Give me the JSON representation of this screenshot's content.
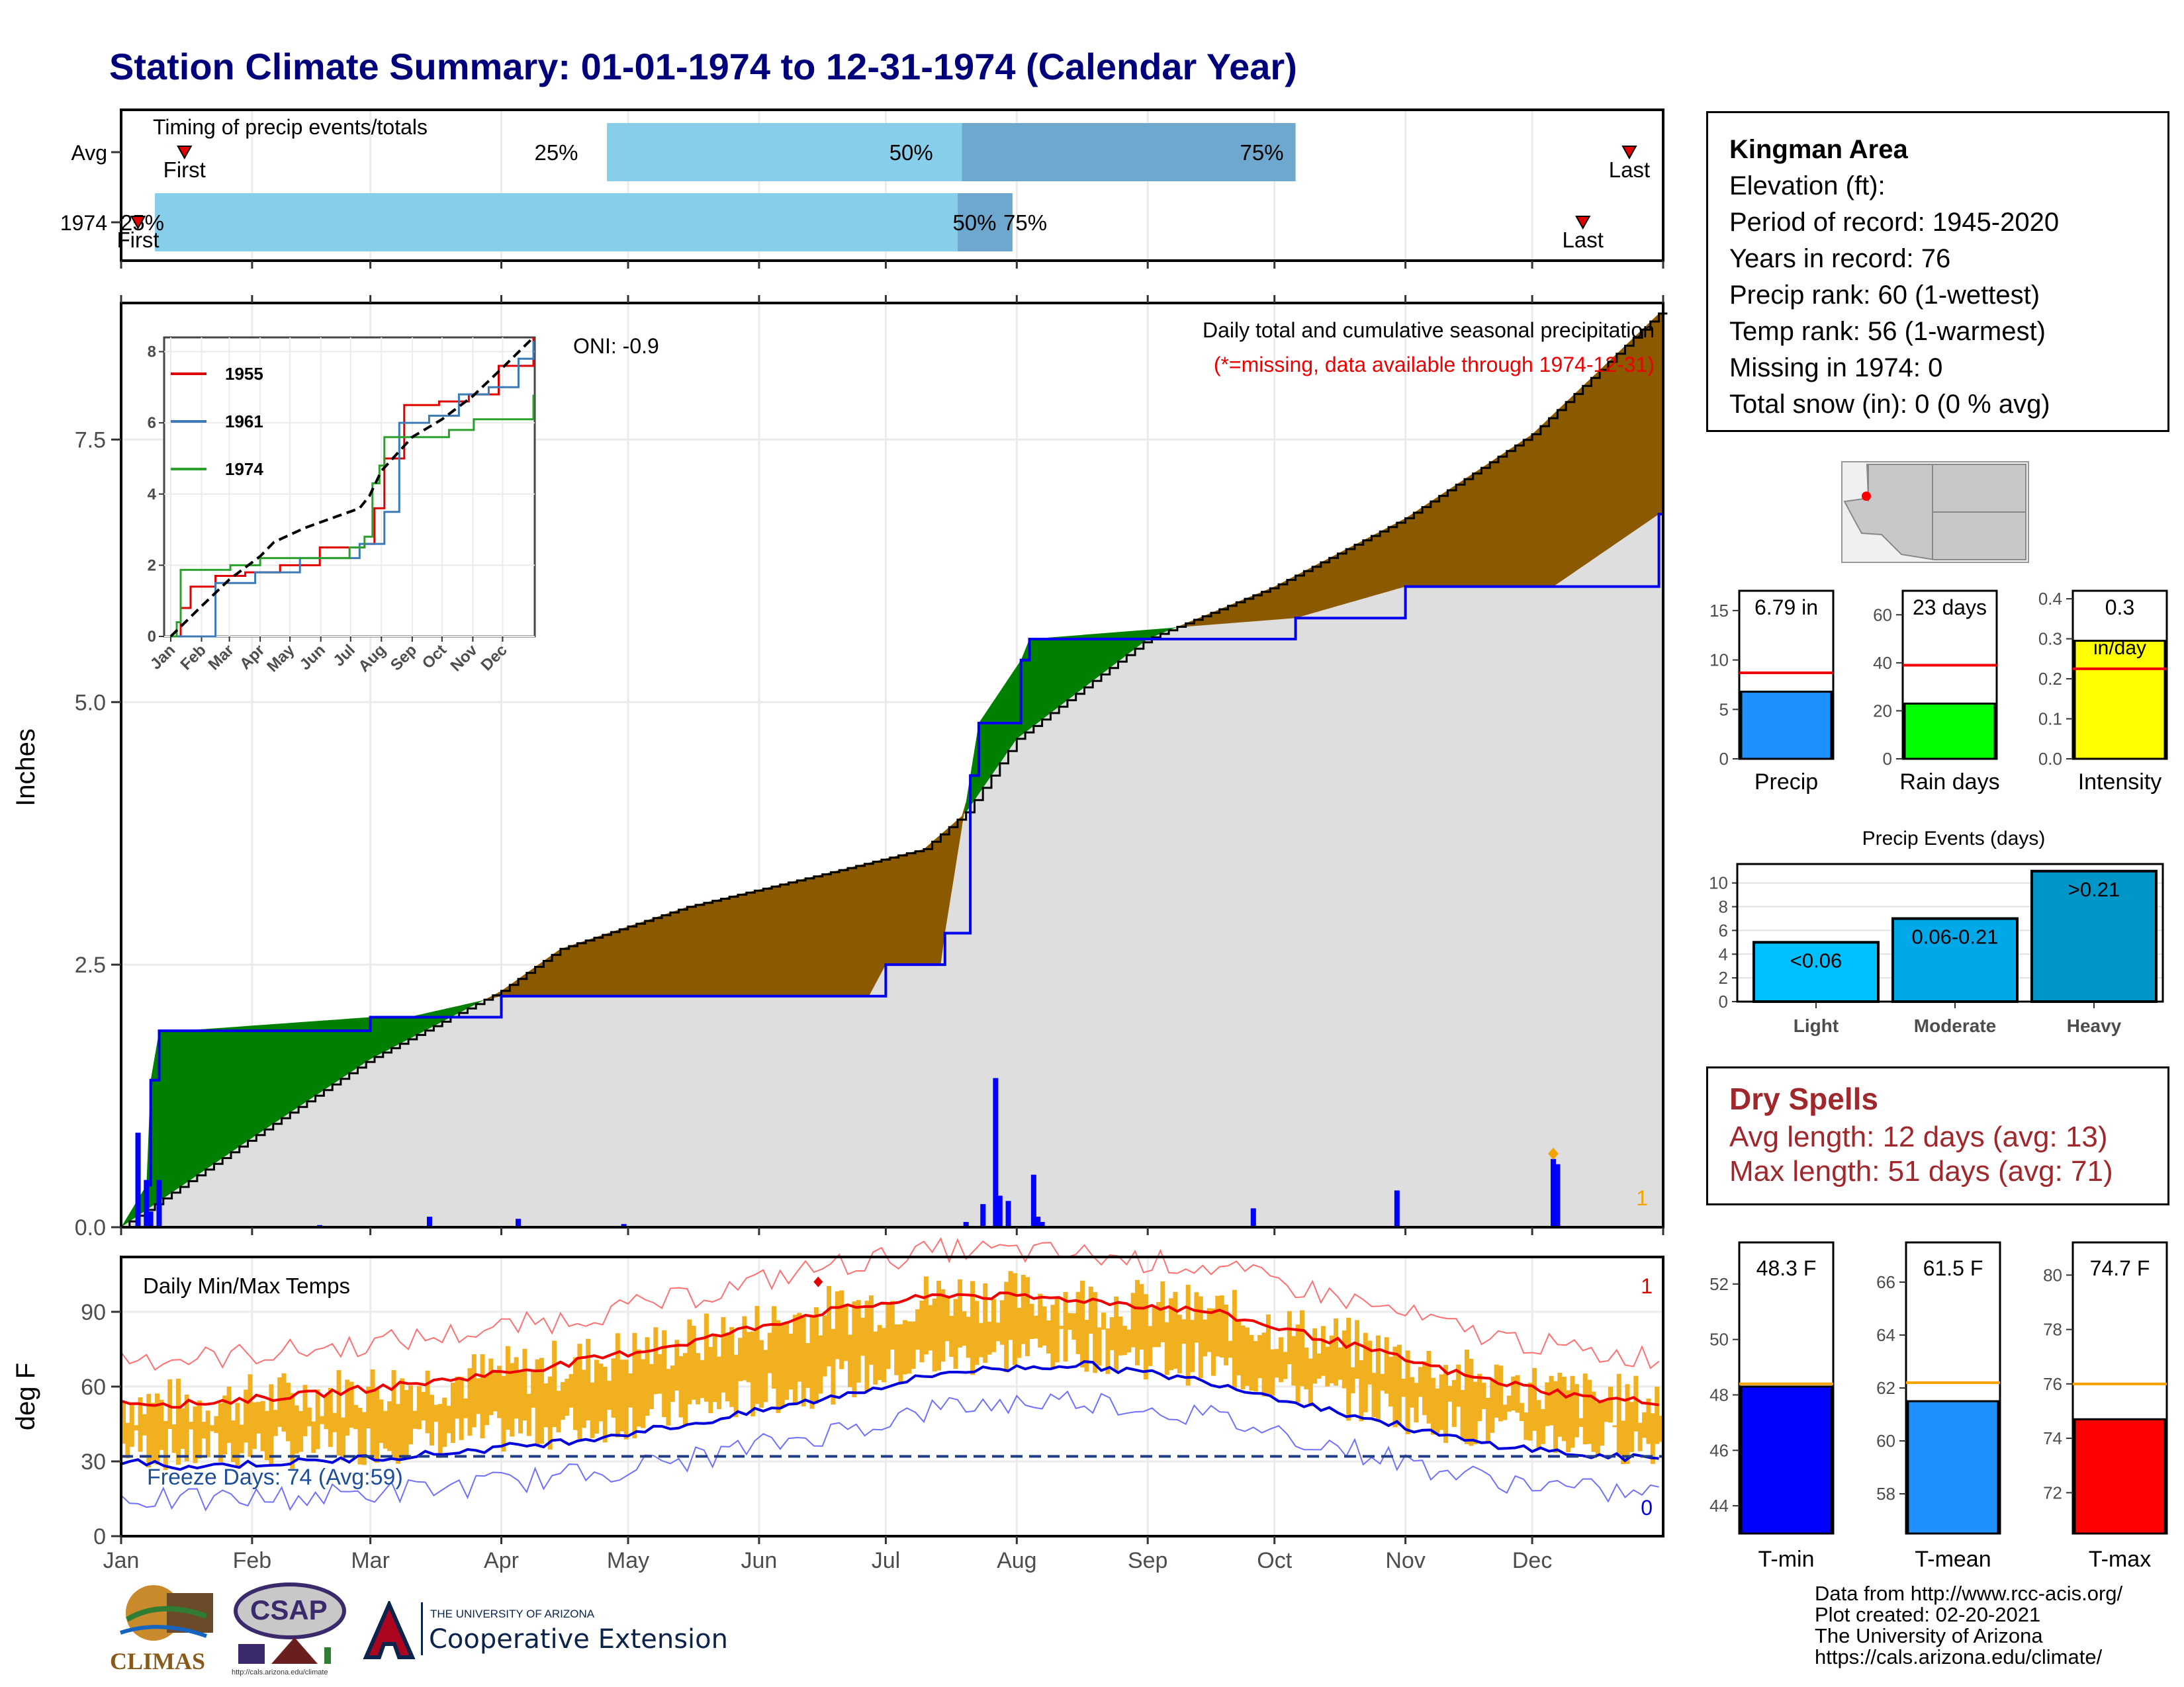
{
  "title": "Station Climate Summary: 01-01-1974 to 12-31-1974 (Calendar Year)",
  "timing": {
    "label": "Timing of precip events/totals",
    "rows": [
      "Avg",
      "1974"
    ],
    "avg": {
      "q25": "25%",
      "q50": "50%",
      "q75": "75%",
      "first": "First",
      "last": "Last"
    },
    "y1974": {
      "q25": "25%",
      "q50": "50%",
      "q75": "75%",
      "first": "First",
      "last": "Last"
    }
  },
  "precip_panel": {
    "ylabel": "Inches",
    "oni": "ONI: -0.9",
    "caption": "Daily total and cumulative seasonal precipitation",
    "caption_missing": "(*=missing, data available through 1974-12-31)",
    "count_label": "1",
    "yticks": [
      "0.0",
      "2.5",
      "5.0",
      "7.5"
    ]
  },
  "inset": {
    "yticks": [
      "0",
      "2",
      "4",
      "6",
      "8"
    ],
    "months": [
      "Jan",
      "Feb",
      "Mar",
      "Apr",
      "May",
      "Jun",
      "Jul",
      "Aug",
      "Sep",
      "Oct",
      "Nov",
      "Dec"
    ],
    "legend": [
      "1955",
      "1961",
      "1974"
    ]
  },
  "temp_panel": {
    "ylabel": "deg F",
    "label": "Daily Min/Max Temps",
    "freeze": "Freeze Days: 74 (Avg:59)",
    "count_top": "1",
    "count_bottom": "0",
    "yticks": [
      "0",
      "30",
      "60",
      "90"
    ],
    "months": [
      "Jan",
      "Feb",
      "Mar",
      "Apr",
      "May",
      "Jun",
      "Jul",
      "Aug",
      "Sep",
      "Oct",
      "Nov",
      "Dec"
    ]
  },
  "info": {
    "station": "Kingman Area",
    "lines": [
      "Elevation (ft):",
      "Period of record: 1945-2020",
      "Years in record: 76",
      "Precip rank: 60 (1-wettest)",
      "Temp rank: 56 (1-warmest)",
      "Missing in 1974: 0",
      "Total snow (in): 0 (0 % avg)"
    ]
  },
  "mini_bars": {
    "precip": {
      "label": "Precip",
      "value_text": "6.79 in",
      "value": 6.79,
      "avg": 8.7,
      "ymax": 17,
      "yticks": [
        "0",
        "5",
        "10",
        "15"
      ],
      "color": "#1e90ff"
    },
    "rain_days": {
      "label": "Rain days",
      "value_text": "23 days",
      "value": 23,
      "avg": 39,
      "ymax": 70,
      "yticks": [
        "0",
        "20",
        "40",
        "60"
      ],
      "color": "#00ff00"
    },
    "intensity": {
      "label": "Intensity",
      "value_text": "0.3",
      "value_text2": "in/day",
      "value": 0.295,
      "avg": 0.225,
      "ymax": 0.42,
      "yticks": [
        "0.0",
        "0.1",
        "0.2",
        "0.3",
        "0.4"
      ],
      "color": "#ffff00"
    }
  },
  "events": {
    "title": "Precip Events (days)",
    "yticks": [
      "0",
      "2",
      "4",
      "6",
      "8",
      "10"
    ],
    "bars": [
      {
        "cat": "Light",
        "label": "<0.06",
        "value": 5,
        "color": "#00bfff"
      },
      {
        "cat": "Moderate",
        "label": "0.06-0.21",
        "value": 7,
        "color": "#00a8e8"
      },
      {
        "cat": "Heavy",
        "label": ">0.21",
        "value": 11,
        "color": "#0096c8"
      }
    ]
  },
  "dry_spells": {
    "title": "Dry Spells",
    "avg_line": "Avg length: 12 days (avg: 13)",
    "max_line": "Max length: 51 days (avg: 71)"
  },
  "temp_bars": {
    "tmin": {
      "label": "T-min",
      "value_text": "48.3 F",
      "value": 48.3,
      "avg": 48.4,
      "ymin": 43,
      "ymax": 53.5,
      "yticks": [
        "44",
        "46",
        "48",
        "50",
        "52"
      ],
      "color": "#0000ff"
    },
    "tmean": {
      "label": "T-mean",
      "value_text": "61.5 F",
      "value": 61.5,
      "avg": 62.2,
      "ymin": 56.5,
      "ymax": 67.5,
      "yticks": [
        "58",
        "60",
        "62",
        "64",
        "66"
      ],
      "color": "#1e90ff"
    },
    "tmax": {
      "label": "T-max",
      "value_text": "74.7 F",
      "value": 74.7,
      "avg": 76.0,
      "ymin": 70.5,
      "ymax": 81.2,
      "yticks": [
        "72",
        "74",
        "76",
        "78",
        "80"
      ],
      "color": "#ff0000"
    }
  },
  "footer": {
    "lines": [
      "Data from http://www.rcc-acis.org/",
      "Plot created: 02-20-2021",
      "The University of Arizona",
      "https://cals.arizona.edu/climate/"
    ],
    "logos": {
      "climas": "CLIMAS",
      "csap": "CSAP",
      "csap_url": "http://cals.arizona.edu/climate",
      "ua_small": "THE UNIVERSITY OF ARIZONA",
      "ua_big": "Cooperative Extension"
    }
  },
  "chart_data": [
    {
      "type": "area",
      "title": "Daily total and cumulative seasonal precipitation",
      "ylabel": "Inches",
      "ylim": [
        0,
        8.8
      ],
      "series": [
        {
          "name": "1974",
          "x": [
            "01-01",
            "01-07",
            "01-08",
            "01-10",
            "01-15",
            "03-01",
            "03-10",
            "04-01",
            "06-27",
            "07-01",
            "07-14",
            "07-15",
            "07-21",
            "07-23",
            "08-02",
            "08-04",
            "10-06",
            "11-01",
            "12-06",
            "12-31"
          ],
          "values": [
            0,
            0.4,
            1.4,
            1.87,
            1.87,
            2.0,
            2.0,
            2.2,
            2.2,
            2.5,
            2.5,
            2.8,
            4.3,
            4.8,
            5.4,
            5.6,
            5.8,
            6.1,
            6.1,
            6.79
          ]
        },
        {
          "x": [
            "01-01",
            "02-01",
            "03-01",
            "04-01",
            "04-15",
            "05-15",
            "06-15",
            "07-10",
            "07-20",
            "08-01",
            "09-01",
            "10-01",
            "11-01",
            "12-01",
            "12-31"
          ],
          "values": [
            0,
            0.85,
            1.6,
            2.25,
            2.65,
            3.05,
            3.35,
            3.6,
            3.95,
            4.65,
            5.6,
            6.1,
            6.75,
            7.55,
            8.7
          ]
        }
      ],
      "daily_events_in": [
        {
          "date": "01-05",
          "value": 0.9
        },
        {
          "date": "01-07",
          "value": 0.45
        },
        {
          "date": "01-08",
          "value": 0.15
        },
        {
          "date": "01-10",
          "value": 0.45
        },
        {
          "date": "02-17",
          "value": 0.02
        },
        {
          "date": "03-15",
          "value": 0.1
        },
        {
          "date": "04-05",
          "value": 0.08
        },
        {
          "date": "04-30",
          "value": 0.03
        },
        {
          "date": "07-20",
          "value": 0.05
        },
        {
          "date": "07-24",
          "value": 0.22
        },
        {
          "date": "07-27",
          "value": 1.42
        },
        {
          "date": "07-28",
          "value": 0.3
        },
        {
          "date": "07-30",
          "value": 0.25
        },
        {
          "date": "08-05",
          "value": 0.5
        },
        {
          "date": "08-06",
          "value": 0.1
        },
        {
          "date": "08-07",
          "value": 0.05
        },
        {
          "date": "09-26",
          "value": 0.18
        },
        {
          "date": "10-30",
          "value": 0.35
        },
        {
          "date": "12-06",
          "value": 0.65
        },
        {
          "date": "12-07",
          "value": 0.6
        }
      ]
    },
    {
      "type": "line",
      "title": "Daily Min/Max Temps",
      "ylabel": "deg F",
      "ylim": [
        0,
        112
      ],
      "x": [
        "Jan",
        "Feb",
        "Mar",
        "Apr",
        "May",
        "Jun",
        "Jul",
        "Aug",
        "Sep",
        "Oct",
        "Nov",
        "Dec",
        "Jan"
      ],
      "series": [
        {
          "values": [
            53,
            57,
            62,
            69,
            78,
            90,
            97,
            95,
            90,
            78,
            64,
            55,
            53
          ]
        },
        {
          "values": [
            28,
            30,
            33,
            38,
            45,
            55,
            66,
            69,
            62,
            50,
            38,
            32,
            30
          ]
        }
      ]
    }
  ]
}
